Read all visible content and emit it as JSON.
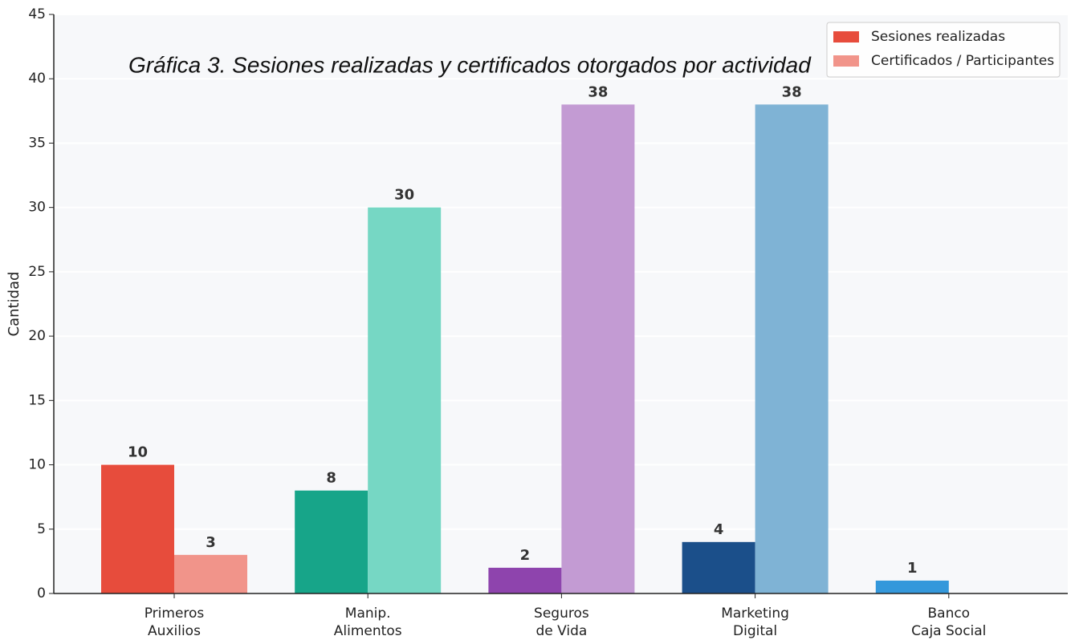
{
  "chart_data": {
    "type": "grouped-bar",
    "title": "Gráfica 3. Sesiones realizadas y certificados otorgados por actividad",
    "ylabel": "Cantidad",
    "categories": [
      [
        "Primeros",
        "Auxilios"
      ],
      [
        "Manip.",
        "Alimentos"
      ],
      [
        "Seguros",
        "de Vida"
      ],
      [
        "Marketing",
        "Digital"
      ],
      [
        "Banco",
        "Caja Social"
      ]
    ],
    "series": [
      {
        "name": "Sesiones realizadas",
        "color": "#e74c3c",
        "colors": [
          "#e74c3c",
          "#17a589",
          "#8e44ad",
          "#1b4f8a",
          "#3498db"
        ],
        "values": [
          10,
          8,
          2,
          4,
          1
        ]
      },
      {
        "name": "Certificados / Participantes",
        "color": "#f1948a",
        "colors": [
          "#f1948a",
          "#76d7c4",
          "#c39bd3",
          "#7fb3d5",
          null
        ],
        "values": [
          3,
          30,
          38,
          38,
          null
        ]
      }
    ],
    "ylim": [
      0,
      45
    ],
    "yticks": [
      0,
      5,
      10,
      15,
      20,
      25,
      30,
      35,
      40,
      45
    ],
    "grid": true,
    "legend": "upper right"
  }
}
